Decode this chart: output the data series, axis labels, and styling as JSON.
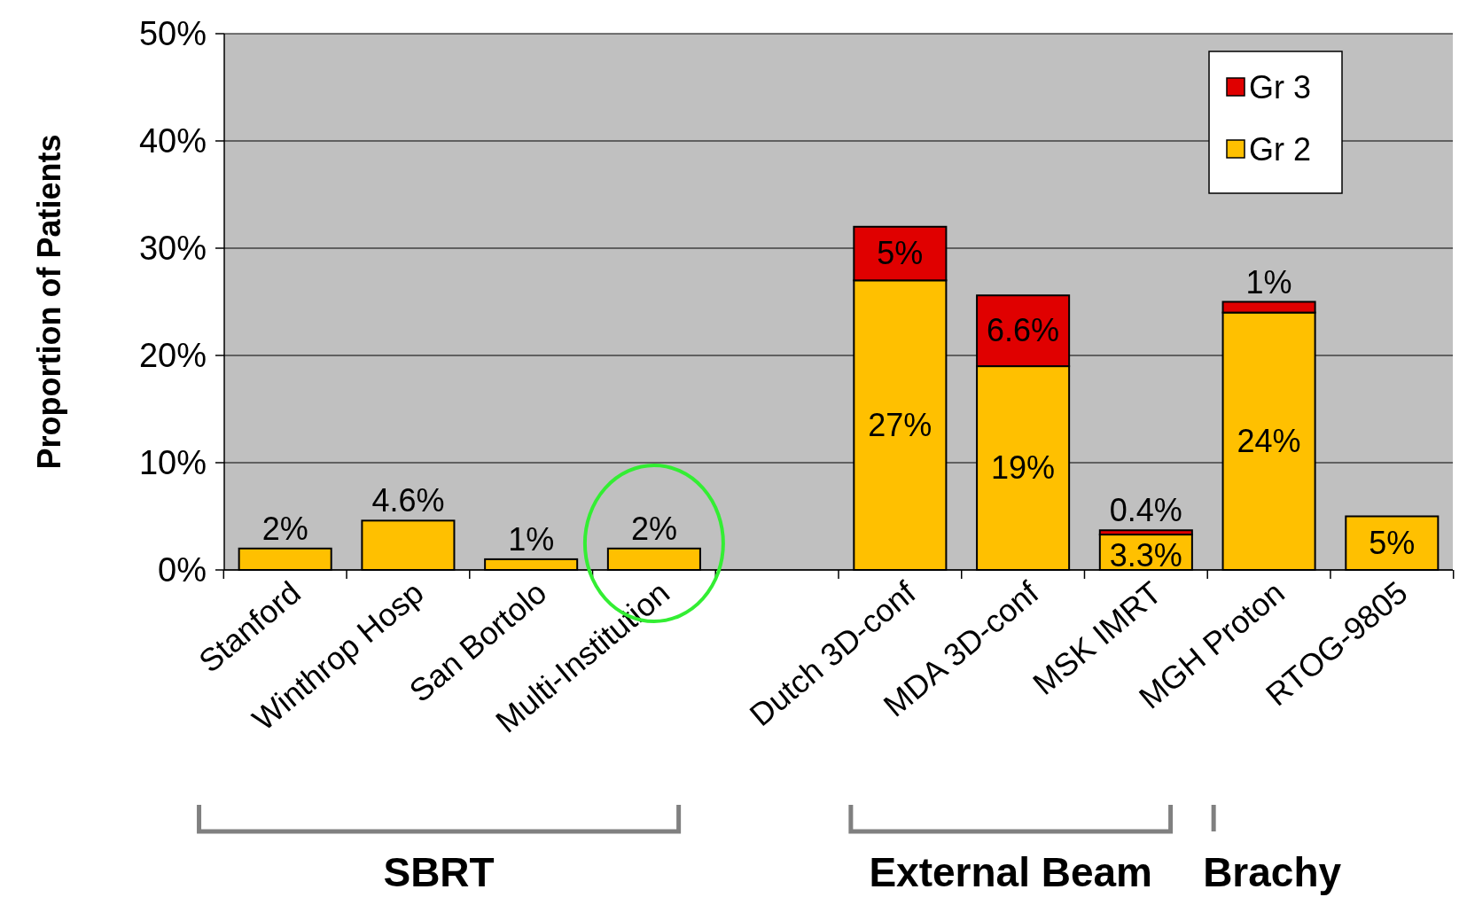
{
  "chart_data": {
    "type": "bar",
    "stacked": true,
    "ylabel": "Proportion of Patients",
    "categories": [
      "Stanford",
      "Winthrop Hosp",
      "San Bortolo",
      "Multi-Institution",
      null,
      "Dutch 3D-conf",
      "MDA 3D-conf",
      "MSK IMRT",
      "MGH Proton",
      "RTOG-9805"
    ],
    "series": [
      {
        "name": "Gr 2",
        "color": "#ffc000",
        "values": [
          2,
          4.6,
          1,
          2,
          null,
          27,
          19,
          3.3,
          24,
          5
        ],
        "value_labels": [
          "2%",
          "4.6%",
          "1%",
          "2%",
          null,
          "27%",
          "19%",
          "3.3%",
          "24%",
          "5%"
        ]
      },
      {
        "name": "Gr 3",
        "color": "#e00000",
        "values": [
          0,
          0,
          0,
          0,
          null,
          5,
          6.6,
          0.4,
          1,
          0
        ],
        "value_labels": [
          null,
          null,
          null,
          null,
          null,
          "5%",
          "6.6%",
          "0.4%",
          "1%",
          null
        ]
      }
    ],
    "ylim": [
      0,
      50
    ],
    "yticks": [
      {
        "value": 0,
        "label": "0%"
      },
      {
        "value": 10,
        "label": "10%"
      },
      {
        "value": 20,
        "label": "20%"
      },
      {
        "value": 30,
        "label": "30%"
      },
      {
        "value": 40,
        "label": "40%"
      },
      {
        "value": 50,
        "label": "50%"
      }
    ],
    "grid": "y",
    "legend": "top right",
    "annotations": [
      "SBRT",
      "External Beam",
      "Brachy"
    ]
  }
}
